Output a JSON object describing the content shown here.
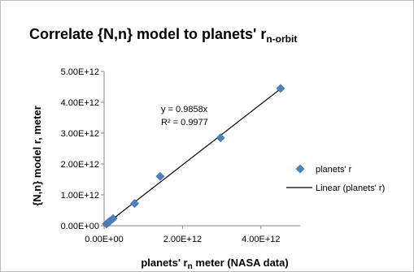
{
  "chart_data": {
    "type": "scatter",
    "title": "Correlate {N,n} model to planets' r",
    "title_subscript": "n-orbit",
    "xlabel": "planets' r",
    "xlabel_subscript": "n",
    "xlabel_suffix": " meter  (NASA data)",
    "ylabel": "{N,n} model  r,  meter",
    "xlim": [
      0,
      5000000000000
    ],
    "ylim": [
      0,
      5000000000000
    ],
    "x_ticks": [
      0,
      2000000000000,
      4000000000000
    ],
    "x_tick_labels": [
      "0.00E+00",
      "2.00E+12",
      "4.00E+12"
    ],
    "y_ticks": [
      0,
      1000000000000,
      2000000000000,
      3000000000000,
      4000000000000,
      5000000000000
    ],
    "y_tick_labels": [
      "0.00E+00",
      "1.00E+12",
      "2.00E+12",
      "3.00E+12",
      "4.00E+12",
      "5.00E+12"
    ],
    "grid": false,
    "legend_position": "right",
    "series": [
      {
        "name": "planets' r",
        "marker": "diamond",
        "color": "#4f81bd",
        "points": [
          {
            "x": 58000000000,
            "y": 55000000000
          },
          {
            "x": 108000000000,
            "y": 105000000000
          },
          {
            "x": 150000000000,
            "y": 148000000000
          },
          {
            "x": 228000000000,
            "y": 230000000000
          },
          {
            "x": 778000000000,
            "y": 720000000000
          },
          {
            "x": 1430000000000,
            "y": 1600000000000
          },
          {
            "x": 2970000000000,
            "y": 2850000000000
          },
          {
            "x": 4500000000000,
            "y": 4450000000000
          }
        ]
      }
    ],
    "trendline": {
      "name": "Linear (planets' r)",
      "slope": 0.9858,
      "intercept": 0,
      "x_range": [
        0,
        4500000000000
      ],
      "color": "#000000",
      "equation_label": "y = 0.9858x",
      "r2_label": "R² = 0.9977"
    }
  }
}
